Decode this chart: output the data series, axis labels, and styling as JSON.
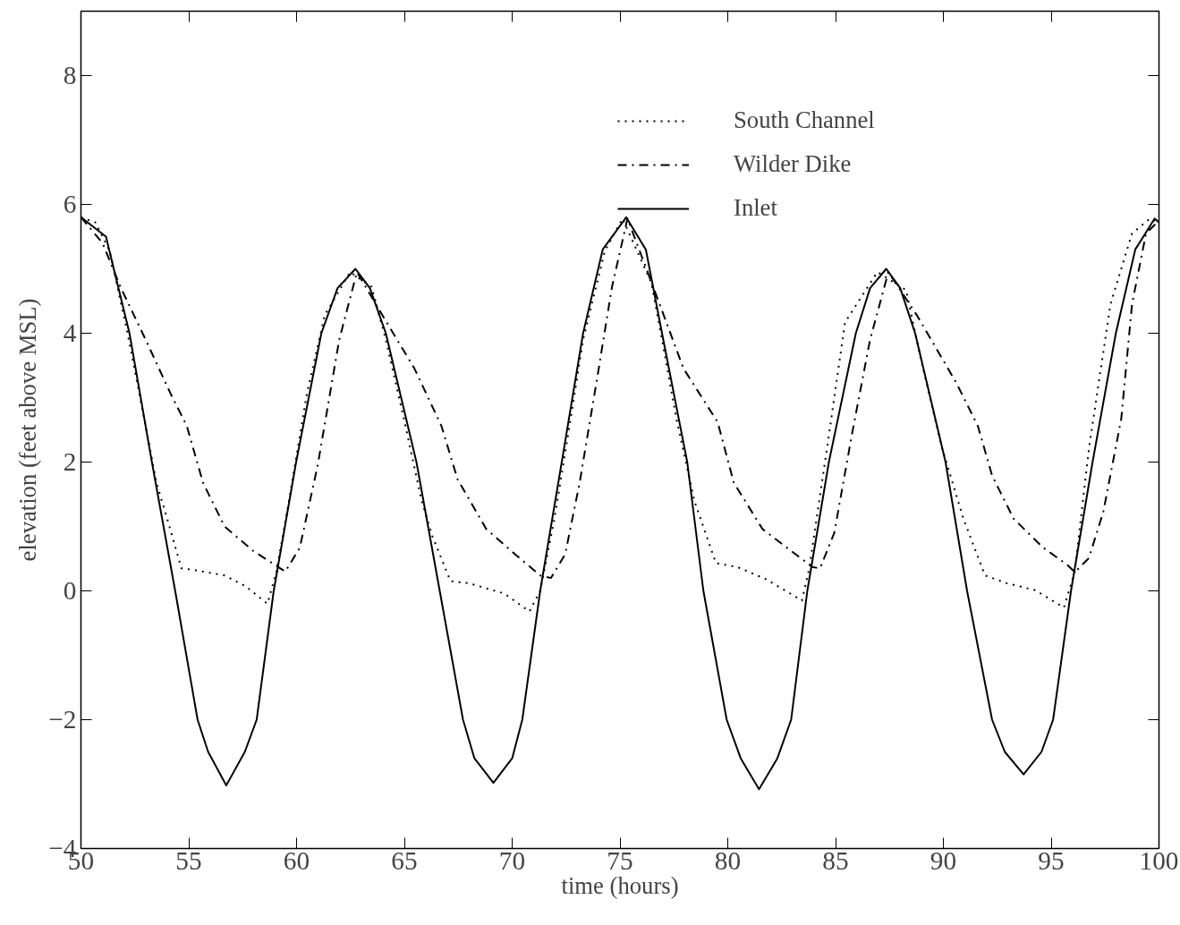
{
  "chart_data": {
    "type": "line",
    "xlabel": "time (hours)",
    "ylabel": "elevation (feet above MSL)",
    "xlim": [
      50,
      100
    ],
    "ylim": [
      -4,
      9
    ],
    "xticks": [
      50,
      55,
      60,
      65,
      70,
      75,
      80,
      85,
      90,
      95,
      100
    ],
    "yticks": [
      -4,
      -2,
      0,
      2,
      4,
      6,
      8
    ],
    "grid": false,
    "legend": "top right",
    "marker": "none",
    "series": [
      {
        "name": "South Channel",
        "color": "#000000",
        "line_style": "dotted",
        "x": [
          50,
          50.67,
          51.33,
          52.16,
          53.0,
          53.5,
          54.0,
          54.66,
          55.32,
          56.66,
          57.65,
          58.65,
          59.07,
          59.65,
          60.48,
          61.31,
          62.48,
          63.48,
          64.14,
          64.98,
          65.8,
          66.3,
          67.14,
          67.97,
          69.63,
          70.8,
          71.3,
          71.96,
          72.63,
          73.29,
          74.3,
          75.12,
          76.46,
          76.95,
          77.62,
          78.45,
          79.45,
          80.45,
          81.78,
          83.44,
          83.78,
          84.61,
          85.44,
          86.94,
          88.27,
          88.94,
          89.93,
          90.93,
          91.93,
          92.93,
          94.26,
          95.59,
          96.09,
          96.76,
          97.75,
          98.75,
          99.58,
          100
        ],
        "values": [
          5.8,
          5.72,
          5.28,
          4.0,
          2.56,
          1.68,
          1.12,
          0.35,
          0.32,
          0.24,
          0.07,
          -0.2,
          0.3,
          1.4,
          3.06,
          4.28,
          4.95,
          4.72,
          3.9,
          2.67,
          1.4,
          0.85,
          0.15,
          0.12,
          -0.04,
          -0.32,
          0.0,
          1.12,
          2.5,
          3.9,
          5.28,
          5.78,
          4.78,
          3.9,
          2.67,
          1.4,
          0.43,
          0.37,
          0.18,
          -0.15,
          0.35,
          2.23,
          4.17,
          4.95,
          4.67,
          3.62,
          2.23,
          1.12,
          0.24,
          0.12,
          0.01,
          -0.26,
          0.29,
          2.23,
          4.45,
          5.55,
          5.78,
          5.72
        ]
      },
      {
        "name": "Wilder Dike",
        "color": "#000000",
        "line_style": "dashdot",
        "x": [
          50,
          51.0,
          51.83,
          53.0,
          54.16,
          54.91,
          55.66,
          56.66,
          57.99,
          59.15,
          59.48,
          60.15,
          60.98,
          61.98,
          62.8,
          63.98,
          65.47,
          66.72,
          67.47,
          68.8,
          70.13,
          71.3,
          71.8,
          72.46,
          73.13,
          73.96,
          74.63,
          75.35,
          76.54,
          77.95,
          79.53,
          80.28,
          81.61,
          82.94,
          83.94,
          84.28,
          84.94,
          85.77,
          86.6,
          87.45,
          88.77,
          90.6,
          91.6,
          92.26,
          93.26,
          94.6,
          95.76,
          96.1,
          96.75,
          97.42,
          98.25,
          98.75,
          99.4,
          100
        ],
        "values": [
          5.8,
          5.4,
          4.72,
          3.9,
          3.06,
          2.56,
          1.68,
          1.0,
          0.62,
          0.37,
          0.3,
          0.67,
          1.95,
          3.9,
          4.95,
          4.28,
          3.45,
          2.56,
          1.73,
          0.96,
          0.57,
          0.24,
          0.2,
          0.57,
          1.68,
          3.34,
          4.72,
          5.78,
          4.72,
          3.45,
          2.62,
          1.68,
          0.96,
          0.62,
          0.37,
          0.35,
          0.9,
          2.45,
          3.9,
          4.95,
          4.28,
          3.23,
          2.56,
          1.79,
          1.12,
          0.68,
          0.4,
          0.29,
          0.51,
          1.23,
          2.67,
          4.45,
          5.55,
          5.75
        ]
      },
      {
        "name": "Inlet",
        "color": "#000000",
        "line_style": "solid",
        "x": [
          50,
          51.16,
          52.25,
          53.29,
          54.37,
          55.41,
          55.9,
          56.74,
          57.6,
          58.15,
          58.94,
          59.98,
          61.15,
          61.9,
          62.73,
          63.4,
          64.14,
          65.56,
          66.64,
          67.72,
          68.25,
          69.13,
          70.0,
          70.47,
          71.3,
          72.3,
          73.29,
          74.2,
          75.29,
          76.2,
          76.95,
          78.12,
          78.87,
          79.95,
          80.6,
          81.45,
          82.3,
          82.94,
          83.69,
          84.69,
          85.94,
          86.6,
          87.35,
          88.0,
          88.69,
          90.1,
          91.1,
          92.26,
          92.85,
          93.72,
          94.55,
          95.09,
          95.92,
          96.92,
          98.0,
          98.9,
          99.8,
          100
        ],
        "values": [
          5.8,
          5.5,
          4,
          2,
          0,
          -2,
          -2.5,
          -3.02,
          -2.5,
          -2,
          0,
          2,
          4,
          4.7,
          5.0,
          4.7,
          4,
          2,
          0,
          -2,
          -2.6,
          -2.98,
          -2.6,
          -2,
          0,
          2,
          4,
          5.3,
          5.8,
          5.3,
          4,
          2,
          0,
          -2,
          -2.6,
          -3.08,
          -2.6,
          -2,
          0,
          2,
          4,
          4.7,
          5.0,
          4.7,
          4,
          2,
          0,
          -2,
          -2.5,
          -2.85,
          -2.5,
          -2,
          0,
          2,
          4,
          5.3,
          5.78,
          5.72
        ]
      }
    ]
  }
}
